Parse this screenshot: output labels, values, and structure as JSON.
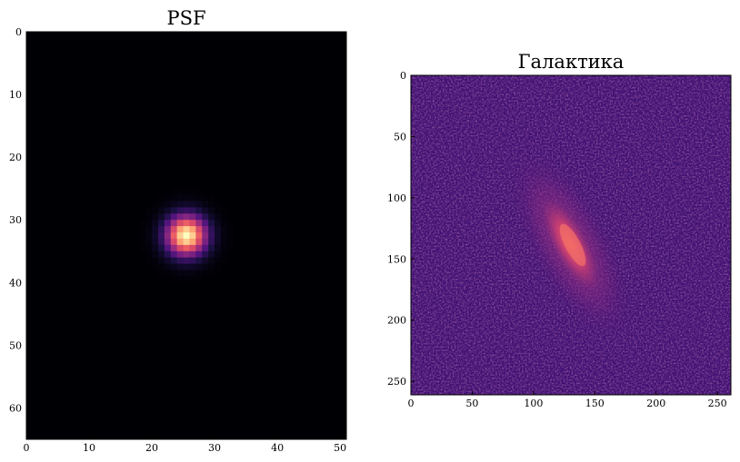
{
  "chart_data": [
    {
      "type": "heatmap",
      "title": "PSF",
      "xlabel": "",
      "ylabel": "",
      "colormap": "magma",
      "shape": [
        65,
        51
      ],
      "xlim": [
        0,
        51
      ],
      "ylim": [
        65,
        0
      ],
      "xticks": [
        0,
        10,
        20,
        30,
        40,
        50
      ],
      "yticks": [
        0,
        10,
        20,
        30,
        40,
        50,
        60
      ],
      "peak": {
        "x": 25.5,
        "y": 32.5,
        "sigma": 2.2
      },
      "grid": false
    },
    {
      "type": "heatmap",
      "title": "Галактика",
      "xlabel": "",
      "ylabel": "",
      "colormap": "magma",
      "shape": [
        261,
        261
      ],
      "xlim": [
        0,
        261
      ],
      "ylim": [
        261,
        0
      ],
      "xticks": [
        0,
        50,
        100,
        150,
        200,
        250
      ],
      "yticks": [
        0,
        50,
        100,
        150,
        200,
        250
      ],
      "galaxy": {
        "center_x": 130,
        "center_y": 138,
        "angle_deg": 62,
        "major": 55,
        "minor": 14
      },
      "grid": false
    }
  ]
}
